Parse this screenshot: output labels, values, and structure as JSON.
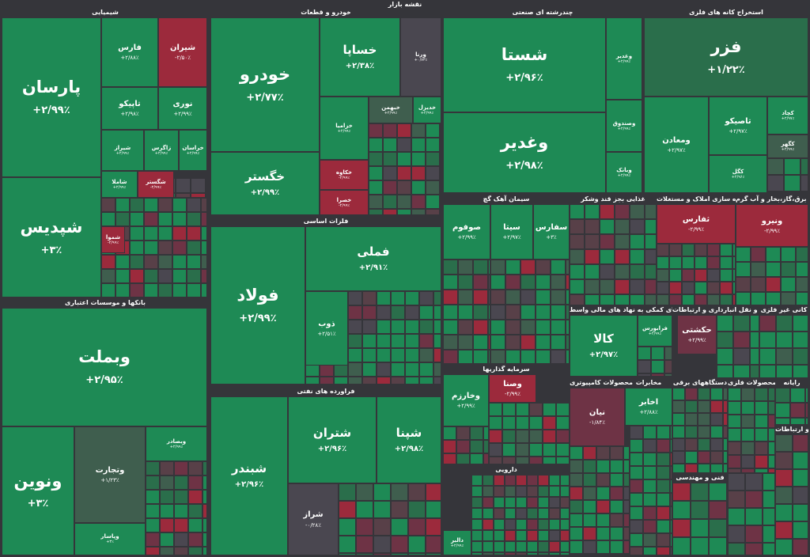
{
  "title": "نقشه بازار",
  "sections": {
    "petrochem": "شیمیایی",
    "auto": "خودرو و قطعات",
    "multi": "چندرشته ای صنعتی",
    "metal_ore": "استخراج کانه های فلزی",
    "basic_metal": "فلزات اساسی",
    "cement": "سیمان آهک گچ",
    "food": "غذایی بجز قند وشکر",
    "mass": "انبوه سازی املاک و مستغلات",
    "utility": "عرضه برق،گاز،بخار و آب گرم",
    "banks": "بانکها و موسسات اعتباری",
    "transport": "حمل و نقل انبارداری و ارتباطات",
    "financial": "فعالیتهای کمکی به نهاد های مالی واسط",
    "nonmetal": "کانی غیر فلزی",
    "investment": "سرمایه گذاریها",
    "computer": "محصولات کامپیوتری",
    "telecom": "مخابرات",
    "electric": "دستگاههای برقی",
    "metalprod": "محصولات فلزی",
    "radio": "رایانه",
    "oil": "فراورده های نفتی",
    "pharma": "دارویی",
    "tech_eng": "فنی و مهندسی",
    "info": "اطلاعات و ارتباطات"
  },
  "tiles": {
    "parsan": {
      "name": "پارسان",
      "pct": "+۲/۹۹٪"
    },
    "shepdis": {
      "name": "شپدیس",
      "pct": "+۳٪"
    },
    "fars": {
      "name": "فارس",
      "pct": "+۲/۸۸٪"
    },
    "shiran": {
      "name": "شیران",
      "pct": "-۲/۵۰٪"
    },
    "tapiko": {
      "name": "تاپیکو",
      "pct": "+۲/۹۸٪"
    },
    "nouri": {
      "name": "نوری",
      "pct": "+۲/۹۹٪"
    },
    "shiraz": {
      "name": "شیراز",
      "pct": "+۲/۹۹٪"
    },
    "zagros": {
      "name": "زاگرس",
      "pct": "+۲/۹۹٪"
    },
    "khorasan": {
      "name": "خراسان",
      "pct": "+۲/۹۹٪"
    },
    "shekhark": {
      "name": "شگستر",
      "pct": "-۲/۹۹٪"
    },
    "shamla": {
      "name": "شاملا",
      "pct": "+۲/۹۹٪"
    },
    "shemad": {
      "name": "شموا",
      "pct": "-۲/۹۹٪"
    },
    "khodro": {
      "name": "خودرو",
      "pct": "+۲/۷۷٪"
    },
    "khegostar": {
      "name": "خگستر",
      "pct": "+۲/۹۹٪"
    },
    "khapa": {
      "name": "خساپا",
      "pct": "+۲/۳۸٪"
    },
    "varna": {
      "name": "ورنا",
      "pct": "+۰/۷۳٪"
    },
    "khazamia": {
      "name": "خزامیا",
      "pct": "+۲/۹۹٪"
    },
    "khakow": {
      "name": "خکاوه",
      "pct": "-۲/۹۹٪"
    },
    "khasra": {
      "name": "خصرا",
      "pct": "-۲/۹۹٪"
    },
    "khebhman": {
      "name": "خبهمن",
      "pct": "+۲/۹۹٪"
    },
    "khodiz": {
      "name": "خدیزل",
      "pct": "+۲/۹۹٪"
    },
    "shasta": {
      "name": "شستا",
      "pct": "+۲/۹۶٪"
    },
    "vaghadir": {
      "name": "وغدیر",
      "pct": "+۲/۹۸٪"
    },
    "vaghadir2": {
      "name": "وغدیر",
      "pct": "+۲/۹۹٪"
    },
    "vsandogh": {
      "name": "وصندوق",
      "pct": "+۲/۹۹٪"
    },
    "vbank": {
      "name": "وبانک",
      "pct": "+۲/۹۹٪"
    },
    "fazar": {
      "name": "فزر",
      "pct": "+۱/۲۲٪"
    },
    "tapiko2": {
      "name": "تاصیکو",
      "pct": "+۲/۹۷٪"
    },
    "vmaadan": {
      "name": "ومعادن",
      "pct": "+۲/۹۷٪"
    },
    "kgol": {
      "name": "کگل",
      "pct": "+۲/۹۶٪"
    },
    "kchad": {
      "name": "کچاد",
      "pct": "+۲/۹۷٪"
    },
    "kahar": {
      "name": "کگهر",
      "pct": "+۲/۹۹٪"
    },
    "fameli": {
      "name": "فملی",
      "pct": "+۲/۹۱٪"
    },
    "foulad": {
      "name": "فولاد",
      "pct": "+۲/۹۹٪"
    },
    "zob": {
      "name": "ذوب",
      "pct": "+۲/۵۱٪"
    },
    "vebmelat": {
      "name": "وبملت",
      "pct": "+۲/۹۵٪"
    },
    "vonovin": {
      "name": "ونوین",
      "pct": "+۳٪"
    },
    "vtejarat": {
      "name": "وتجارت",
      "pct": "+۱/۲۳٪"
    },
    "vesaderat": {
      "name": "وبصادر",
      "pct": "+۲/۹۹٪"
    },
    "vepasar": {
      "name": "وپاسار",
      "pct": "+۳٪"
    },
    "sofoum": {
      "name": "صوفوم",
      "pct": "+۲/۹۹٪"
    },
    "sita": {
      "name": "سیتا",
      "pct": "+۲/۹۷٪"
    },
    "sfars": {
      "name": "سفارس",
      "pct": "+۳٪"
    },
    "ghalfars": {
      "name": "ثفارس",
      "pct": "-۲/۹۹٪"
    },
    "vanirou": {
      "name": "ونیرو",
      "pct": "-۲/۹۹٪"
    },
    "kala": {
      "name": "کالا",
      "pct": "+۲/۹۷٪"
    },
    "hakeshti": {
      "name": "حکشتی",
      "pct": "+۲/۹۹٪"
    },
    "fraboors": {
      "name": "فرابورس",
      "pct": "+۲/۹۹٪"
    },
    "nian": {
      "name": "نیان",
      "pct": "-۱/۸۴٪"
    },
    "akhaber": {
      "name": "اخابر",
      "pct": "+۲/۸۸٪"
    },
    "shebandar": {
      "name": "شبندر",
      "pct": "+۲/۹۶٪"
    },
    "shetran": {
      "name": "شتران",
      "pct": "+۲/۹۶٪"
    },
    "shepna": {
      "name": "شپنا",
      "pct": "+۲/۹۸٪"
    },
    "sheraz": {
      "name": "شراز",
      "pct": "-۰/۲۸٪"
    },
    "vsapa": {
      "name": "وصنا",
      "pct": "-۲/۹۹٪"
    },
    "vkharazm": {
      "name": "وخارزم",
      "pct": "+۲/۹۹٪"
    },
    "dalbr": {
      "name": "دالبر",
      "pct": "+۲/۹۹٪"
    }
  },
  "colors": {
    "green": "#1e8a55",
    "red": "#9c2a3c",
    "background": "#35353a"
  }
}
